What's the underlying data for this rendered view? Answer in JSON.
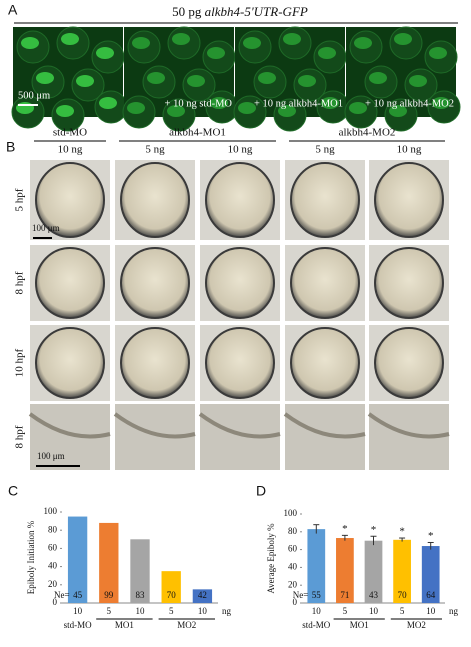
{
  "panel_a": {
    "label": "A",
    "title_prefix": "50 pg",
    "title_gene": "alkbh4-5'UTR-GFP",
    "scale": "500 μm",
    "captions": [
      "+ 10 ng std-MO",
      "+ 10 ng alkbh4-MO1",
      "+ 10 ng alkbh4-MO2"
    ]
  },
  "panel_b": {
    "label": "B",
    "groups": [
      {
        "name": "std-MO",
        "doses": [
          "10 ng"
        ]
      },
      {
        "name": "alkbh4-MO1",
        "doses": [
          "5 ng",
          "10 ng"
        ]
      },
      {
        "name": "alkbh4-MO2",
        "doses": [
          "5 ng",
          "10 ng"
        ]
      }
    ],
    "rows": [
      "5 hpf",
      "8 hpf",
      "10 hpf",
      "8 hpf"
    ],
    "scales": [
      "100 μm",
      "100 μm"
    ]
  },
  "chart_data": [
    {
      "type": "bar",
      "panel": "C",
      "y_label": "Epiboly Initiation %",
      "categories": [
        "10",
        "5",
        "10",
        "5",
        "10"
      ],
      "unit": "ng",
      "groups": [
        "std-MO",
        "MO1",
        "MO2"
      ],
      "values": [
        95,
        88,
        70,
        35,
        15
      ],
      "colors": [
        "#5b9bd5",
        "#ed7d31",
        "#a5a5a5",
        "#ffc000",
        "#4472c4"
      ],
      "n_prefix": "Ne=",
      "n": [
        45,
        99,
        83,
        70,
        42
      ],
      "ylim": [
        0,
        100
      ],
      "yticks": [
        0,
        20,
        40,
        60,
        80,
        100
      ]
    },
    {
      "type": "bar",
      "panel": "D",
      "y_label": "Average Epiboly %",
      "categories": [
        "10",
        "5",
        "10",
        "5",
        "10"
      ],
      "unit": "ng",
      "groups": [
        "std-MO",
        "MO1",
        "MO2"
      ],
      "values": [
        83,
        73,
        70,
        71,
        64
      ],
      "errors": [
        5,
        3,
        5,
        2,
        4
      ],
      "colors": [
        "#5b9bd5",
        "#ed7d31",
        "#a5a5a5",
        "#ffc000",
        "#4472c4"
      ],
      "markers": [
        null,
        "*",
        "*",
        "*",
        "*"
      ],
      "n_prefix": "Ne=",
      "n": [
        55,
        71,
        43,
        70,
        64
      ],
      "ylim": [
        0,
        100
      ],
      "yticks": [
        0,
        20,
        40,
        60,
        80,
        100
      ]
    }
  ]
}
